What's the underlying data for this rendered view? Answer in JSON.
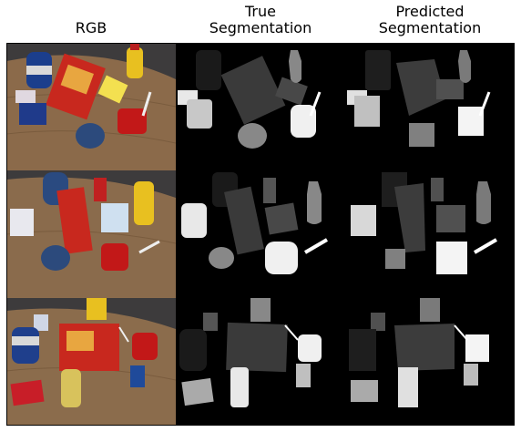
{
  "figure": {
    "columns": [
      {
        "title_lines": [
          "RGB"
        ]
      },
      {
        "title_lines": [
          "True",
          "Segmentation"
        ]
      },
      {
        "title_lines": [
          "Predicted",
          "Segmentation"
        ]
      }
    ]
  },
  "colors": {
    "background": "#000000",
    "table_wood": "#8b6a4a",
    "carpet": "#3d3b3c",
    "seg_grays": [
      "#1a1a1a",
      "#3a3a3a",
      "#555555",
      "#888888",
      "#bfbfbf",
      "#e8e8e8",
      "#ffffff"
    ]
  }
}
